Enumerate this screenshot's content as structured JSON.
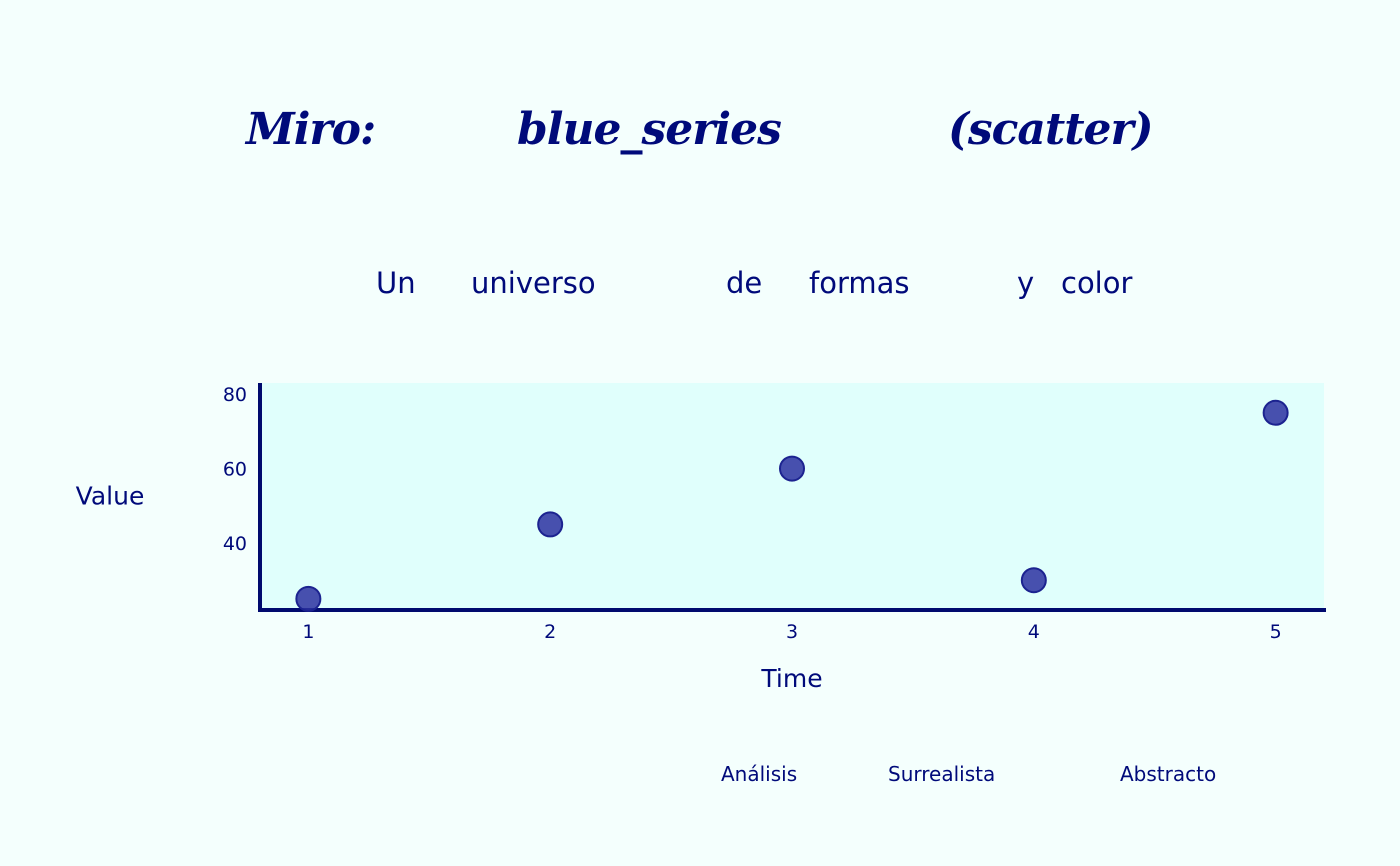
{
  "title_words": [
    "Miro:",
    "blue_series",
    "(scatter)"
  ],
  "subtitle_words": [
    "Un",
    "universo",
    "de",
    "formas",
    "y",
    "color"
  ],
  "footer_words": [
    "Análisis",
    "Surrealista",
    "Abstracto"
  ],
  "colors": {
    "background": "#f4fffd",
    "plot_background": "#e0fffc",
    "text": "#000a7a",
    "axis": "#000a6e",
    "marker_fill": "#2b31a0",
    "marker_stroke": "#1c2390"
  },
  "chart_data": {
    "type": "scatter",
    "title": "Miro: blue_series (scatter)",
    "subtitle": "Un universo de formas y color",
    "xlabel": "Time",
    "ylabel": "Value",
    "x": [
      1,
      2,
      3,
      4,
      5
    ],
    "y": [
      25,
      45,
      60,
      30,
      75
    ],
    "xticks": [
      1,
      2,
      3,
      4,
      5
    ],
    "yticks": [
      40,
      60,
      80
    ],
    "xlim": [
      0.8,
      5.2
    ],
    "ylim": [
      22,
      83
    ],
    "grid": false
  }
}
